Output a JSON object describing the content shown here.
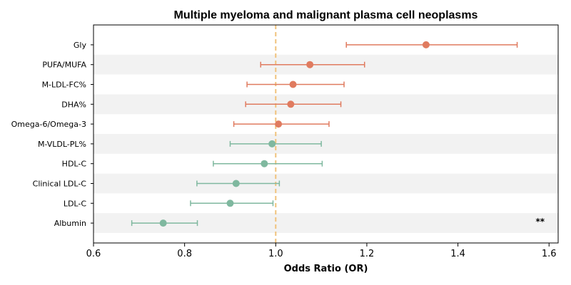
{
  "chart_data": {
    "type": "scatter",
    "subtype": "forest-plot",
    "title": "Multiple myeloma and malignant plasma cell neoplasms",
    "xlabel": "Odds Ratio (OR)",
    "ylabel": "",
    "xlim": [
      0.6,
      1.62
    ],
    "xticks": [
      "0.6",
      "0.8",
      "1.0",
      "1.2",
      "1.4",
      "1.6"
    ],
    "reference_line": 1.0,
    "grid": false,
    "colors": {
      "positive": "#e07b5f",
      "negative": "#7fb89f",
      "reference": "#f0c27b",
      "band": "#f2f2f2"
    },
    "rows": [
      {
        "label": "Gly",
        "or": 1.33,
        "lo": 1.155,
        "hi": 1.53,
        "color": "positive",
        "sig": ""
      },
      {
        "label": "PUFA/MUFA",
        "or": 1.075,
        "lo": 0.967,
        "hi": 1.195,
        "color": "positive",
        "sig": ""
      },
      {
        "label": "M-LDL-FC%",
        "or": 1.038,
        "lo": 0.937,
        "hi": 1.15,
        "color": "positive",
        "sig": ""
      },
      {
        "label": "DHA%",
        "or": 1.033,
        "lo": 0.934,
        "hi": 1.143,
        "color": "positive",
        "sig": ""
      },
      {
        "label": "Omega-6/Omega-3",
        "or": 1.006,
        "lo": 0.908,
        "hi": 1.117,
        "color": "positive",
        "sig": ""
      },
      {
        "label": "M-VLDL-PL%",
        "or": 0.992,
        "lo": 0.9,
        "hi": 1.1,
        "color": "negative",
        "sig": ""
      },
      {
        "label": "HDL-C",
        "or": 0.975,
        "lo": 0.863,
        "hi": 1.102,
        "color": "negative",
        "sig": ""
      },
      {
        "label": "Clinical LDL-C",
        "or": 0.913,
        "lo": 0.827,
        "hi": 1.008,
        "color": "negative",
        "sig": ""
      },
      {
        "label": "LDL-C",
        "or": 0.9,
        "lo": 0.813,
        "hi": 0.994,
        "color": "negative",
        "sig": ""
      },
      {
        "label": "Albumin",
        "or": 0.753,
        "lo": 0.684,
        "hi": 0.828,
        "color": "negative",
        "sig": "**"
      }
    ]
  }
}
